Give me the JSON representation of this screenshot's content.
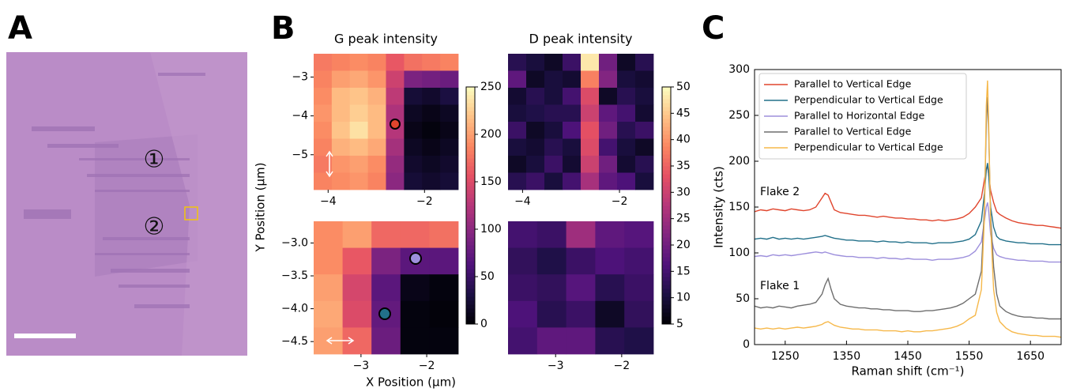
{
  "figure": {
    "panel_labels": [
      "A",
      "B",
      "C"
    ],
    "image_labels": [
      "①",
      "②"
    ],
    "shared_ylabel": "Y Position (μm)",
    "shared_xlabel": "X Position (μm)",
    "colorbars": [
      {
        "colormap": "magma",
        "lim": [
          0,
          250
        ],
        "ticks": [
          0,
          50,
          100,
          150,
          200,
          250
        ]
      },
      {
        "colormap": "magma",
        "lim": [
          5,
          50
        ],
        "ticks": [
          5,
          10,
          15,
          20,
          25,
          30,
          35,
          40,
          45,
          50
        ]
      }
    ]
  },
  "chart_data": [
    {
      "type": "heatmap",
      "title": "G peak intensity",
      "colorbar": 0,
      "xlim": [
        -4.3,
        -1.3
      ],
      "xticks": [
        {
          "value": -4,
          "label": "−4"
        },
        {
          "value": -2,
          "label": "−2"
        }
      ],
      "ylim": [
        -5.9,
        -2.4
      ],
      "yticks": [
        {
          "value": -3,
          "label": "−3"
        },
        {
          "value": -4,
          "label": "−4"
        },
        {
          "value": -5,
          "label": "−5"
        }
      ],
      "values": [
        [
          180,
          185,
          190,
          185,
          160,
          175,
          180,
          185
        ],
        [
          185,
          200,
          205,
          195,
          140,
          90,
          85,
          80
        ],
        [
          190,
          215,
          220,
          210,
          130,
          25,
          20,
          30
        ],
        [
          195,
          215,
          225,
          215,
          120,
          15,
          10,
          15
        ],
        [
          190,
          220,
          235,
          215,
          125,
          10,
          5,
          10
        ],
        [
          185,
          210,
          215,
          205,
          115,
          15,
          10,
          15
        ],
        [
          180,
          195,
          200,
          190,
          105,
          20,
          15,
          20
        ],
        [
          185,
          190,
          195,
          185,
          100,
          25,
          20,
          25
        ]
      ]
    },
    {
      "type": "heatmap",
      "title": "D peak intensity",
      "colorbar": 1,
      "xlim": [
        -4.3,
        -1.3
      ],
      "xticks": [
        {
          "value": -4,
          "label": "−4"
        },
        {
          "value": -2,
          "label": "−2"
        }
      ],
      "values": [
        [
          12,
          10,
          8,
          14,
          48,
          20,
          8,
          12
        ],
        [
          18,
          8,
          10,
          9,
          38,
          22,
          10,
          9
        ],
        [
          9,
          12,
          10,
          15,
          32,
          8,
          12,
          10
        ],
        [
          10,
          11,
          12,
          12,
          30,
          18,
          15,
          9
        ],
        [
          14,
          8,
          10,
          16,
          33,
          20,
          12,
          14
        ],
        [
          10,
          9,
          12,
          10,
          32,
          15,
          10,
          8
        ],
        [
          8,
          10,
          14,
          9,
          30,
          20,
          9,
          12
        ],
        [
          12,
          14,
          10,
          15,
          26,
          18,
          16,
          10
        ]
      ]
    },
    {
      "type": "heatmap",
      "colorbar": 0,
      "xlim": [
        -3.72,
        -1.52
      ],
      "xticks": [
        {
          "value": -3,
          "label": "−3"
        },
        {
          "value": -2,
          "label": "−2"
        }
      ],
      "ylim": [
        -4.69,
        -2.67
      ],
      "yticks": [
        {
          "value": -3.0,
          "label": "−3.0"
        },
        {
          "value": -3.5,
          "label": "−3.5"
        },
        {
          "value": -4.0,
          "label": "−4.0"
        },
        {
          "value": -4.5,
          "label": "−4.5"
        }
      ],
      "values": [
        [
          190,
          200,
          170,
          170,
          175
        ],
        [
          190,
          160,
          90,
          70,
          70
        ],
        [
          200,
          145,
          70,
          10,
          5
        ],
        [
          205,
          150,
          75,
          5,
          3
        ],
        [
          200,
          170,
          80,
          5,
          5
        ]
      ]
    },
    {
      "type": "heatmap",
      "colorbar": 1,
      "xlim": [
        -3.72,
        -1.52
      ],
      "xticks": [
        {
          "value": -3,
          "label": "−3"
        },
        {
          "value": -2,
          "label": "−2"
        }
      ],
      "values": [
        [
          15,
          14,
          25,
          18,
          17
        ],
        [
          13,
          11,
          14,
          16,
          15
        ],
        [
          14,
          13,
          17,
          12,
          14
        ],
        [
          16,
          12,
          14,
          8,
          13
        ],
        [
          15,
          18,
          18,
          12,
          11
        ]
      ]
    },
    {
      "type": "line",
      "xlabel": "Raman shift (cm⁻¹)",
      "ylabel": "Intensity (cts)",
      "legend": "upper left",
      "annotations": [
        "Flake 2",
        "Flake 1"
      ],
      "xlim": [
        1200,
        1700
      ],
      "xticks": [
        1250,
        1350,
        1450,
        1550,
        1650
      ],
      "ylim": [
        0,
        300
      ],
      "yticks": [
        0,
        50,
        100,
        150,
        200,
        250,
        300
      ],
      "x": [
        1200,
        1210,
        1220,
        1230,
        1240,
        1250,
        1260,
        1270,
        1280,
        1290,
        1300,
        1310,
        1315,
        1320,
        1325,
        1330,
        1340,
        1350,
        1360,
        1370,
        1380,
        1390,
        1400,
        1410,
        1420,
        1430,
        1440,
        1450,
        1460,
        1470,
        1480,
        1490,
        1500,
        1510,
        1520,
        1530,
        1540,
        1550,
        1560,
        1570,
        1575,
        1578,
        1580,
        1582,
        1585,
        1590,
        1595,
        1600,
        1610,
        1620,
        1630,
        1640,
        1650,
        1660,
        1670,
        1680,
        1690,
        1700
      ],
      "series": [
        {
          "name": "Parallel to Vertical Edge",
          "color": "#e0452d",
          "values": [
            145,
            147,
            146,
            148,
            147,
            146,
            148,
            147,
            146,
            147,
            150,
            160,
            165,
            163,
            155,
            147,
            144,
            143,
            142,
            141,
            141,
            140,
            139,
            140,
            139,
            138,
            138,
            137,
            137,
            136,
            136,
            135,
            136,
            135,
            136,
            137,
            139,
            143,
            150,
            160,
            180,
            192,
            195,
            185,
            168,
            155,
            145,
            142,
            138,
            135,
            133,
            132,
            131,
            130,
            130,
            129,
            128,
            127
          ]
        },
        {
          "name": "Perpendicular to Vertical Edge",
          "color": "#22708a",
          "values": [
            115,
            116,
            115,
            117,
            115,
            116,
            115,
            116,
            115,
            116,
            117,
            118,
            119,
            118,
            117,
            116,
            115,
            114,
            114,
            113,
            113,
            113,
            112,
            113,
            112,
            112,
            111,
            112,
            111,
            111,
            111,
            110,
            111,
            111,
            111,
            112,
            113,
            115,
            120,
            135,
            165,
            190,
            198,
            185,
            150,
            128,
            118,
            115,
            113,
            112,
            111,
            111,
            110,
            110,
            110,
            109,
            109,
            109
          ]
        },
        {
          "name": "Parallel to Horizontal Edge",
          "color": "#9d8fdc",
          "values": [
            96,
            97,
            96,
            98,
            97,
            98,
            97,
            98,
            99,
            100,
            101,
            100,
            101,
            100,
            99,
            98,
            97,
            96,
            96,
            95,
            95,
            95,
            94,
            95,
            94,
            94,
            93,
            94,
            93,
            93,
            93,
            92,
            93,
            93,
            93,
            94,
            95,
            97,
            102,
            112,
            135,
            150,
            155,
            145,
            120,
            105,
            98,
            96,
            94,
            93,
            92,
            92,
            91,
            91,
            91,
            90,
            90,
            90
          ]
        },
        {
          "name": "Parallel to Vertical Edge",
          "color": "#6e6e6e",
          "values": [
            42,
            40,
            41,
            40,
            42,
            41,
            40,
            42,
            43,
            44,
            46,
            55,
            65,
            72,
            60,
            50,
            44,
            42,
            41,
            40,
            40,
            39,
            39,
            38,
            38,
            37,
            37,
            37,
            36,
            36,
            37,
            37,
            38,
            39,
            40,
            42,
            45,
            50,
            55,
            80,
            150,
            240,
            270,
            230,
            140,
            85,
            55,
            42,
            36,
            33,
            31,
            30,
            30,
            29,
            29,
            28,
            28,
            28
          ]
        },
        {
          "name": "Perpendicular to Vertical Edge",
          "color": "#f6b84a",
          "values": [
            18,
            17,
            18,
            17,
            18,
            17,
            18,
            19,
            18,
            19,
            20,
            22,
            24,
            25,
            23,
            21,
            19,
            18,
            17,
            17,
            16,
            16,
            16,
            15,
            15,
            15,
            14,
            15,
            14,
            14,
            15,
            15,
            16,
            17,
            18,
            20,
            23,
            28,
            32,
            60,
            140,
            260,
            288,
            240,
            130,
            60,
            35,
            25,
            18,
            14,
            12,
            11,
            10,
            10,
            9,
            9,
            9,
            8
          ]
        }
      ]
    }
  ]
}
